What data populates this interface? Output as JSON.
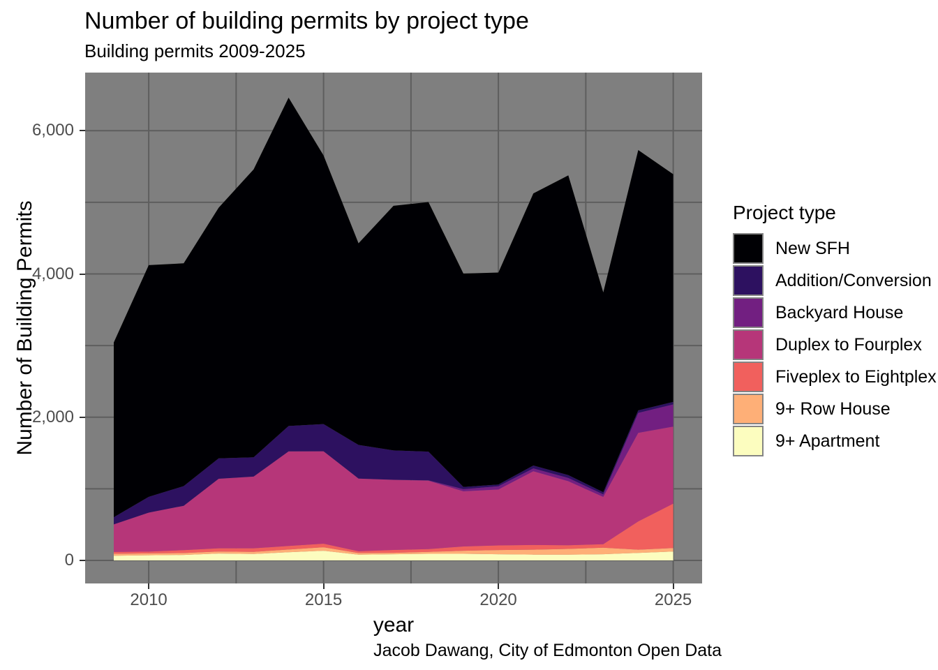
{
  "header": {
    "title": "Number of building permits by project type",
    "subtitle": "Building permits 2009-2025"
  },
  "caption": "Jacob Dawang, City of Edmonton Open Data",
  "chart_data": {
    "type": "area",
    "stacked": true,
    "title": "Number of building permits by project type",
    "subtitle": "Building permits 2009-2025",
    "xlabel": "year",
    "ylabel": "Number of Building Permits",
    "caption": "Jacob Dawang, City of Edmonton Open Data",
    "x": [
      2009,
      2010,
      2011,
      2012,
      2013,
      2014,
      2015,
      2016,
      2017,
      2018,
      2019,
      2020,
      2021,
      2022,
      2023,
      2024,
      2025
    ],
    "series": [
      {
        "name": "New SFH",
        "color": "#000004",
        "values": [
          2440,
          3235,
          3110,
          3500,
          4020,
          4585,
          3750,
          2815,
          3415,
          3485,
          2980,
          2960,
          3800,
          4185,
          2790,
          3635,
          3180
        ]
      },
      {
        "name": "Addition/Conversion",
        "color": "#2D1160",
        "values": [
          100,
          220,
          275,
          285,
          270,
          355,
          380,
          470,
          410,
          400,
          30,
          25,
          40,
          40,
          30,
          35,
          35
        ]
      },
      {
        "name": "Backyard House",
        "color": "#721F81",
        "values": [
          0,
          0,
          0,
          0,
          0,
          0,
          0,
          0,
          0,
          5,
          30,
          45,
          40,
          45,
          35,
          280,
          310
        ]
      },
      {
        "name": "Duplex to Fourplex",
        "color": "#B63679",
        "values": [
          385,
          545,
          620,
          970,
          1000,
          1320,
          1290,
          1015,
          980,
          955,
          770,
          780,
          1030,
          895,
          660,
          1235,
          1075
        ]
      },
      {
        "name": "Fiveplex to Eightplex",
        "color": "#F1605D",
        "values": [
          25,
          25,
          40,
          45,
          50,
          50,
          50,
          25,
          40,
          40,
          60,
          65,
          65,
          50,
          50,
          395,
          620
        ]
      },
      {
        "name": "9+ Row House",
        "color": "#FEAF77",
        "values": [
          28,
          26,
          26,
          29,
          30,
          37,
          49,
          23,
          19,
          26,
          42,
          58,
          69,
          80,
          90,
          45,
          48
        ]
      },
      {
        "name": "9+ Apartment",
        "color": "#FCFDBF",
        "values": [
          65,
          72,
          77,
          96,
          90,
          115,
          135,
          80,
          87,
          93,
          93,
          87,
          81,
          81,
          87,
          105,
          125
        ]
      }
    ],
    "stack_order_bottom_to_top": [
      "9+ Apartment",
      "9+ Row House",
      "Fiveplex to Eightplex",
      "Duplex to Fourplex",
      "Backyard House",
      "Addition/Conversion",
      "New SFH"
    ],
    "axes": {
      "x": {
        "label": "year",
        "domain": [
          2009,
          2025
        ],
        "major_ticks": [
          {
            "value": 2010,
            "label": "2010"
          },
          {
            "value": 2015,
            "label": "2015"
          },
          {
            "value": 2020,
            "label": "2020"
          },
          {
            "value": 2025,
            "label": "2025"
          }
        ],
        "minor_gridlines": [
          2012.5,
          2017.5,
          2022.5
        ]
      },
      "y": {
        "label": "Number of Building Permits",
        "domain": [
          0,
          6500
        ],
        "major_ticks": [
          {
            "value": 0,
            "label": "0"
          },
          {
            "value": 2000,
            "label": "2,000"
          },
          {
            "value": 4000,
            "label": "4,000"
          },
          {
            "value": 6000,
            "label": "6,000"
          }
        ],
        "minor_gridlines": [
          1000,
          3000,
          5000
        ]
      }
    },
    "legend": {
      "title": "Project type",
      "position": "right"
    },
    "panel": {
      "background": "#7F7F7F",
      "gridline_color": "#5E5E5E",
      "tick_color": "#333333",
      "tick_label_color": "#4D4D4D"
    }
  }
}
